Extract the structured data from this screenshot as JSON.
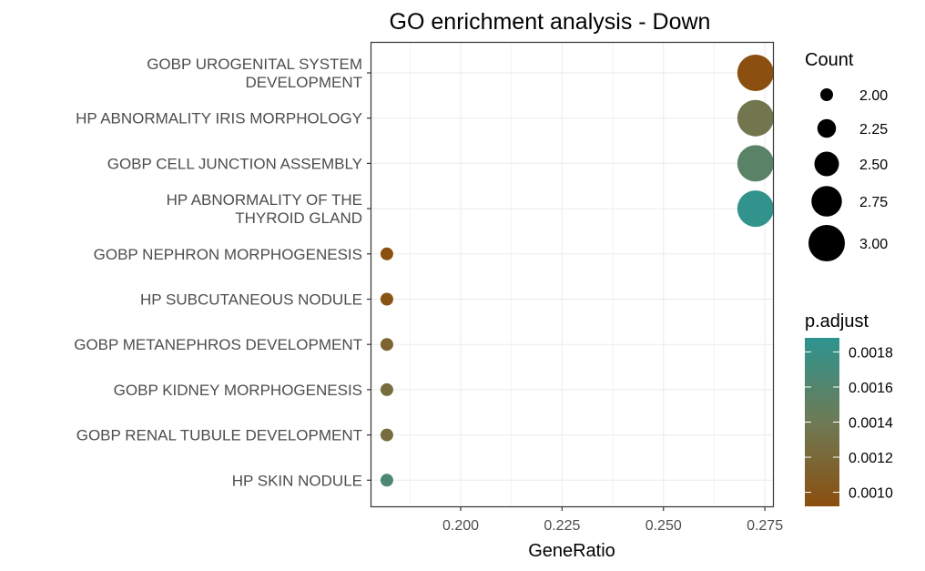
{
  "chart_data": {
    "type": "scatter",
    "title": "GO enrichment analysis - Down",
    "xlabel": "GeneRatio",
    "ylabel": "",
    "xlim": [
      0.178,
      0.277
    ],
    "xticks": [
      0.2,
      0.225,
      0.25,
      0.275
    ],
    "xtick_labels": [
      "0.200",
      "0.225",
      "0.250",
      "0.275"
    ],
    "grid": true,
    "categories": [
      [
        "GOBP UROGENITAL SYSTEM",
        "DEVELOPMENT"
      ],
      [
        "HP ABNORMALITY IRIS MORPHOLOGY"
      ],
      [
        "GOBP CELL JUNCTION ASSEMBLY"
      ],
      [
        "HP ABNORMALITY OF THE",
        "THYROID GLAND"
      ],
      [
        "GOBP NEPHRON MORPHOGENESIS"
      ],
      [
        "HP SUBCUTANEOUS NODULE"
      ],
      [
        "GOBP METANEPHROS DEVELOPMENT"
      ],
      [
        "GOBP KIDNEY MORPHOGENESIS"
      ],
      [
        "GOBP RENAL TUBULE DEVELOPMENT"
      ],
      [
        "HP SKIN NODULE"
      ]
    ],
    "points": [
      {
        "x": 0.2727,
        "count": 3,
        "p_adjust": 0.00092
      },
      {
        "x": 0.2727,
        "count": 3,
        "p_adjust": 0.00135
      },
      {
        "x": 0.2727,
        "count": 3,
        "p_adjust": 0.00155
      },
      {
        "x": 0.2727,
        "count": 3,
        "p_adjust": 0.00185
      },
      {
        "x": 0.1818,
        "count": 2,
        "p_adjust": 0.00092
      },
      {
        "x": 0.1818,
        "count": 2,
        "p_adjust": 0.00096
      },
      {
        "x": 0.1818,
        "count": 2,
        "p_adjust": 0.00115
      },
      {
        "x": 0.1818,
        "count": 2,
        "p_adjust": 0.00125
      },
      {
        "x": 0.1818,
        "count": 2,
        "p_adjust": 0.00125
      },
      {
        "x": 0.1818,
        "count": 2,
        "p_adjust": 0.00165
      }
    ],
    "size_legend": {
      "title": "Count",
      "entries": [
        2.0,
        2.25,
        2.5,
        2.75,
        3.0
      ],
      "labels": [
        "2.00",
        "2.25",
        "2.50",
        "2.75",
        "3.00"
      ]
    },
    "color_legend": {
      "title": "p.adjust",
      "range": [
        0.00092,
        0.00188
      ],
      "ticks": [
        0.001,
        0.0012,
        0.0014,
        0.0016,
        0.0018
      ],
      "tick_labels": [
        "0.0010",
        "0.0012",
        "0.0014",
        "0.0016",
        "0.0018"
      ],
      "low_color": "#8b4f0f",
      "mid_color": "#6e7a55",
      "high_color": "#2e9490"
    },
    "legend_position": "right"
  }
}
